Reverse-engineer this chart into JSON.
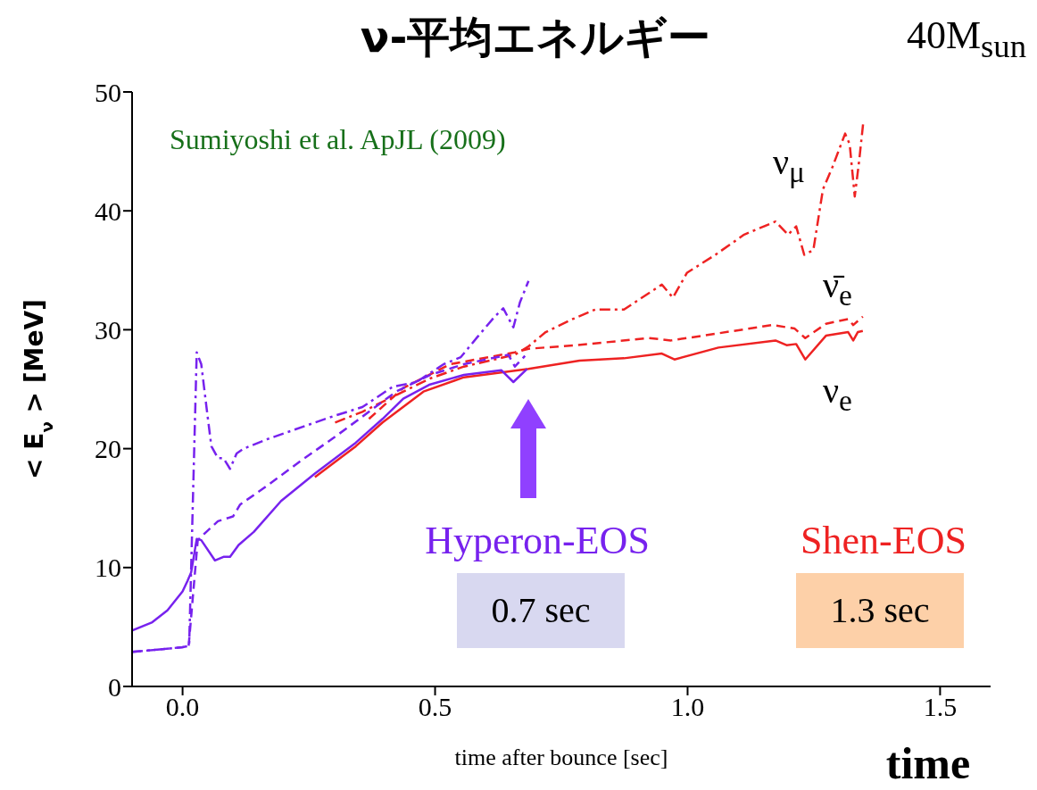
{
  "chart_data": {
    "type": "line",
    "title": "ν-平均エネルギー",
    "subtitle": "40M$_{sun}$",
    "xlabel": "time after bounce [sec]",
    "ylabel": "< E$_{ν}$ > [MeV]",
    "xlim": [
      -0.1,
      1.6
    ],
    "xticks": [
      {
        "value": 0,
        "label": "0.0"
      },
      {
        "value": 0.5,
        "label": "0.5"
      },
      {
        "value": 1,
        "label": "1.0"
      },
      {
        "value": 1.5,
        "label": "1.5"
      }
    ],
    "ylim": [
      0,
      50
    ],
    "yticks": [
      0,
      10,
      20,
      30,
      40,
      50
    ],
    "annotations": [
      "Sumiyoshi et al. ApJL (2009)",
      "Hyperon-EOS",
      "0.7 sec",
      "Shen-EOS",
      "1.3 sec",
      "time",
      "ν$_{μ}$",
      "ν̄$_{e}$",
      "ν$_{e}$"
    ],
    "series": [
      {
        "color": "#ee2222",
        "line_style": "solid",
        "x": [
          0.262,
          0.343,
          0.396,
          0.477,
          0.557,
          0.685,
          0.786,
          0.874,
          0.949,
          0.974,
          1.061,
          1.174,
          1.196,
          1.215,
          1.233,
          1.274,
          1.318,
          1.328,
          1.337,
          1.347
        ],
        "values": [
          17.6,
          20.2,
          22.2,
          24.8,
          26,
          26.7,
          27.4,
          27.6,
          28,
          27.5,
          28.5,
          29.1,
          28.7,
          28.8,
          27.5,
          29.5,
          29.8,
          29.1,
          29.8,
          29.9
        ]
      },
      {
        "color": "#ee2222",
        "line_style": "dashed",
        "x": [
          0.369,
          0.437,
          0.53,
          0.658,
          0.685,
          0.779,
          0.924,
          0.967,
          1.061,
          1.168,
          1.212,
          1.233,
          1.274,
          1.318,
          1.328,
          1.347
        ],
        "values": [
          22.5,
          25.1,
          27.1,
          28.1,
          28.4,
          28.7,
          29.3,
          29.1,
          29.7,
          30.4,
          30.1,
          29.3,
          30.5,
          30.9,
          30.4,
          31.1
        ]
      },
      {
        "color": "#ee2222",
        "line_style": "dashdot",
        "x": [
          0.302,
          0.356,
          0.423,
          0.49,
          0.557,
          0.658,
          0.685,
          0.719,
          0.767,
          0.817,
          0.874,
          0.949,
          0.971,
          0.999,
          1.055,
          1.112,
          1.174,
          1.199,
          1.215,
          1.231,
          1.249,
          1.268,
          1.287,
          1.312,
          1.321,
          1.331,
          1.34,
          1.348
        ],
        "values": [
          22.2,
          23.1,
          24.5,
          25.9,
          26.9,
          27.9,
          28.6,
          29.8,
          30.8,
          31.7,
          31.7,
          33.8,
          32.7,
          34.8,
          36.3,
          38,
          39.1,
          38,
          38.7,
          36.3,
          36.7,
          41.8,
          43.7,
          46.5,
          45.6,
          41.2,
          44.3,
          47.5
        ]
      },
      {
        "color": "#7722ee",
        "line_style": "solid",
        "x": [
          -0.1,
          -0.06,
          -0.03,
          0,
          0.01,
          0.017,
          0.028,
          0.037,
          0.064,
          0.081,
          0.094,
          0.111,
          0.141,
          0.195,
          0.262,
          0.343,
          0.396,
          0.437,
          0.49,
          0.557,
          0.631,
          0.655,
          0.682
        ],
        "values": [
          4.7,
          5.4,
          6.4,
          8,
          8.9,
          9.6,
          12.4,
          12.3,
          10.6,
          10.9,
          10.9,
          11.9,
          13,
          15.6,
          17.9,
          20.5,
          22.5,
          24.2,
          25.4,
          26.2,
          26.6,
          25.6,
          26.7
        ]
      },
      {
        "color": "#7722ee",
        "line_style": "dashed",
        "x": [
          -0.1,
          -0.05,
          0,
          0.012,
          0.03,
          0.047,
          0.07,
          0.1,
          0.114,
          0.168,
          0.235,
          0.302,
          0.369,
          0.423,
          0.49,
          0.557,
          0.645,
          0.658,
          0.678
        ],
        "values": [
          2.9,
          3.1,
          3.3,
          3.4,
          12.3,
          13,
          13.9,
          14.3,
          15.3,
          16.9,
          19,
          21,
          23.1,
          24.8,
          26.2,
          27.1,
          27.9,
          26.9,
          27.8
        ]
      },
      {
        "color": "#7722ee",
        "line_style": "dashdot",
        "x": [
          -0.1,
          -0.05,
          0,
          0.012,
          0.013,
          0.028,
          0.037,
          0.047,
          0.057,
          0.07,
          0.081,
          0.094,
          0.107,
          0.121,
          0.168,
          0.222,
          0.289,
          0.356,
          0.416,
          0.463,
          0.517,
          0.551,
          0.584,
          0.618,
          0.635,
          0.655,
          0.668,
          0.685
        ],
        "values": [
          2.9,
          3.1,
          3.3,
          3.4,
          3.4,
          28.1,
          27.1,
          23.6,
          20.2,
          19.2,
          19.2,
          18.3,
          19.6,
          20,
          20.8,
          21.6,
          22.6,
          23.5,
          25.2,
          25.6,
          27.1,
          27.7,
          29.4,
          31.1,
          31.8,
          30.2,
          32.3,
          34.1
        ]
      }
    ]
  }
}
